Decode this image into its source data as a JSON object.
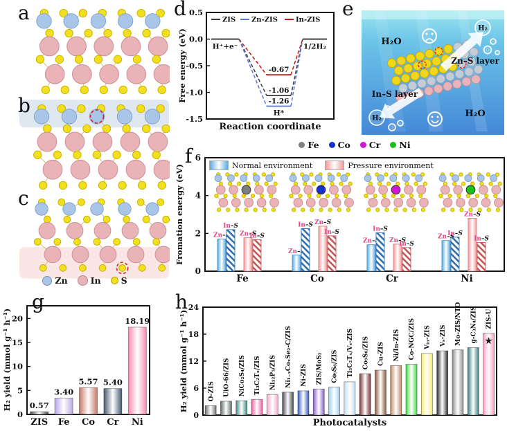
{
  "panels": {
    "a": {
      "label": "a"
    },
    "b": {
      "label": "b"
    },
    "c": {
      "label": "c"
    },
    "d": {
      "label": "d"
    },
    "e": {
      "label": "e"
    },
    "f": {
      "label": "f"
    },
    "g": {
      "label": "g"
    },
    "h": {
      "label": "h"
    }
  },
  "atom_legend": [
    {
      "name": "Zn",
      "color": "#a9c6e8"
    },
    {
      "name": "In",
      "color": "#eab3b8"
    },
    {
      "name": "S",
      "color": "#f2e020"
    }
  ],
  "panel_e_texts": {
    "h2o_top": "H₂O",
    "h2_top": "H₂",
    "zn_s_layer": "Zn–S layer",
    "in_s_layer": "In–S layer",
    "h2_bottom": "H₂",
    "h2o_bottom": "H₂O"
  },
  "chart_data": [
    {
      "id": "d",
      "type": "line",
      "ylabel": "Free energy (eV)",
      "xlabel": "Reaction coordinate",
      "ylim": [
        -1.5,
        0.5
      ],
      "yticks": [
        0.5,
        0.0,
        -0.5,
        -1.0,
        -1.5
      ],
      "legend": [
        {
          "name": "ZIS",
          "color": "#3a3a3a"
        },
        {
          "name": "Zn-ZIS",
          "color": "#5b76e0"
        },
        {
          "name": "In-ZIS",
          "color": "#c41414"
        }
      ],
      "series": [
        {
          "name": "ZIS",
          "color": "#3a3a3a",
          "x": [
            "initial",
            "H*",
            "final"
          ],
          "values": [
            0,
            -1.06,
            0
          ],
          "label": "-1.06"
        },
        {
          "name": "Zn-ZIS",
          "color": "#5b76e0",
          "x": [
            "initial",
            "H*",
            "final"
          ],
          "values": [
            0,
            -1.26,
            0
          ],
          "label": "-1.26"
        },
        {
          "name": "In-ZIS",
          "color": "#c41414",
          "x": [
            "initial",
            "H*",
            "final"
          ],
          "values": [
            0,
            -0.67,
            0
          ],
          "label": "-0.67"
        }
      ],
      "annotations": {
        "left": "H⁺+e⁻",
        "right": "1/2H₂",
        "mid": "H*"
      }
    },
    {
      "id": "f",
      "type": "bar",
      "ylabel": "Fromation energy (eV)",
      "ylim": [
        0,
        6
      ],
      "yticks": [
        0,
        2,
        4,
        6
      ],
      "categories": [
        "Fe",
        "Co",
        "Cr",
        "Ni"
      ],
      "metal_legend": [
        {
          "name": "Fe",
          "color": "#7f7f7f"
        },
        {
          "name": "Co",
          "color": "#1430d0"
        },
        {
          "name": "Cr",
          "color": "#d018d0"
        },
        {
          "name": "Ni",
          "color": "#18c018"
        }
      ],
      "env_legend": [
        {
          "name": "Normal  environment",
          "color": "#5aabe2"
        },
        {
          "name": "Pressure environment",
          "color": "#f59898"
        }
      ],
      "series": [
        {
          "name": "Normal environment Zn–S",
          "env": "normal",
          "metal": "Zn",
          "suffix": "–S",
          "values": [
            1.7,
            0.85,
            1.4,
            1.62
          ]
        },
        {
          "name": "Normal environment In–S",
          "env": "normal",
          "metal": "In",
          "suffix": "–S",
          "values": [
            2.2,
            2.25,
            2.03,
            1.8
          ]
        },
        {
          "name": "Pressure environment Zn–S",
          "env": "pressure",
          "metal": "Zn",
          "suffix": "–S",
          "values": [
            1.77,
            2.38,
            1.43,
            2.8
          ]
        },
        {
          "name": "Pressure environment In–S",
          "env": "pressure",
          "metal": "In",
          "suffix": "–S",
          "values": [
            1.67,
            1.87,
            1.25,
            1.52
          ]
        }
      ],
      "site_label_color": "#e8488a"
    },
    {
      "id": "g",
      "type": "bar",
      "ylabel": "H₂ yield (mmol g⁻¹ h⁻¹)",
      "ylim": [
        0,
        22.5
      ],
      "yticks": [
        0,
        5,
        10,
        15,
        20
      ],
      "categories": [
        "ZIS",
        "Fe",
        "Co",
        "Cr",
        "Ni"
      ],
      "values": [
        0.57,
        3.4,
        5.57,
        5.4,
        18.19
      ],
      "value_labels": [
        "0.57",
        "3.40",
        "5.57",
        "5.40",
        "18.19"
      ],
      "bar_colors": [
        "#4a4a4a",
        "#b7a7e6",
        "#c47868",
        "#46586e",
        "#f78bb0"
      ],
      "label_colors": [
        "#6a6a6a",
        "#9b8ad2",
        "#d06060",
        "#46586e",
        "#f0609a"
      ]
    },
    {
      "id": "h",
      "type": "bar",
      "ylabel": "H₂ yield (mmol g⁻¹ h⁻¹)",
      "xlabel": "Photocatalysts",
      "ylim": [
        0,
        24
      ],
      "yticks": [
        0,
        6,
        12,
        18,
        24
      ],
      "bars": [
        {
          "name": "O-ZIS",
          "value": 2.1,
          "color": "#6f6f6f"
        },
        {
          "name": "UiO-66/ZIS",
          "value": 3.1,
          "color": "#5f6e66"
        },
        {
          "name": "NiCo₂S₄/ZIS",
          "value": 3.2,
          "color": "#3f8d82"
        },
        {
          "name": "Ti₃C₂Tₓ/ZIS",
          "value": 3.5,
          "color": "#f0609f"
        },
        {
          "name": "Ni₁₂P₅/ZIS",
          "value": 4.6,
          "color": "#f8a8c8"
        },
        {
          "name": "Ni₁₋ₓCoₓSe₂-C/ZIS",
          "value": 5.1,
          "color": "#4a4a52"
        },
        {
          "name": "Ni-ZIS",
          "value": 5.4,
          "color": "#3a5fc0"
        },
        {
          "name": "ZIS/MoS₂",
          "value": 5.8,
          "color": "#8a5fd0"
        },
        {
          "name": "Co₉S₈/ZIS",
          "value": 6.2,
          "color": "#9fd0f0"
        },
        {
          "name": "Ti₃C₂Tₓ/Vₛ-ZIS",
          "value": 7.4,
          "color": "#c4e0f6"
        },
        {
          "name": "Co₉S₈/ZIS",
          "value": 9.2,
          "color": "#7a3434"
        },
        {
          "name": "Cu-ZIS",
          "value": 10.0,
          "color": "#8a5a40"
        },
        {
          "name": "Ni/In-ZIS",
          "value": 11.0,
          "color": "#c08a68"
        },
        {
          "name": "Co-NGC/ZIS",
          "value": 11.3,
          "color": "#44dd44"
        },
        {
          "name": "Vᵢₙ-ZIS",
          "value": 13.7,
          "color": "#f6ee6a"
        },
        {
          "name": "Vₛ-ZIS",
          "value": 14.3,
          "color": "#2e2e2e"
        },
        {
          "name": "Mo-ZIS/NTO",
          "value": 14.5,
          "color": "#8f8f8f"
        },
        {
          "name": "g-C₃N₄/ZIS",
          "value": 15.0,
          "color": "#3c7f7f"
        },
        {
          "name": "ZIS-U",
          "value": 18.2,
          "color": "#f8a0c4",
          "marker": "★",
          "marker_color": "#e01818"
        }
      ]
    }
  ]
}
